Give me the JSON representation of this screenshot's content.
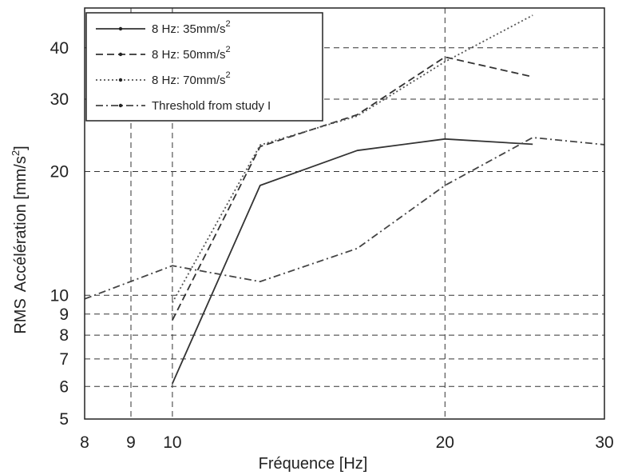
{
  "chart_data": {
    "type": "line",
    "xlabel": "Fréquence [Hz]",
    "ylabel_rms": "RMS",
    "ylabel_main": "Accélération [mm/s",
    "ylabel_sup": "2",
    "ylabel_end": "]",
    "xscale": "log",
    "yscale": "log",
    "xlim": [
      8,
      30
    ],
    "ylim": [
      5,
      50
    ],
    "xticks": [
      8,
      9,
      10,
      20,
      30
    ],
    "xtick_labels": [
      "8",
      "9",
      "10",
      "20",
      "30"
    ],
    "yticks": [
      5,
      6,
      7,
      8,
      9,
      10,
      20,
      30,
      40
    ],
    "ytick_labels": [
      "5",
      "6",
      "7",
      "8",
      "9",
      "10",
      "20",
      "30",
      "40"
    ],
    "grid": true,
    "legend_position": "top-left",
    "series": [
      {
        "name": "8 Hz: 35mm/s",
        "name_sup": "2",
        "dash": "solid",
        "color": "#333333",
        "x": [
          10,
          12.5,
          16,
          20,
          25
        ],
        "y": [
          6.1,
          18.5,
          22.5,
          24,
          23.3
        ]
      },
      {
        "name": "8 Hz: 50mm/s",
        "name_sup": "2",
        "dash": "dashed",
        "color": "#333333",
        "x": [
          10,
          12.5,
          16,
          20,
          25
        ],
        "y": [
          8.7,
          23,
          27.5,
          38,
          34
        ]
      },
      {
        "name": "8 Hz: 70mm/s",
        "name_sup": "2",
        "dash": "dotted",
        "color": "#555555",
        "x": [
          10,
          12.5,
          16,
          20,
          25
        ],
        "y": [
          9.6,
          23.2,
          27.3,
          37,
          48
        ]
      },
      {
        "name": "Threshold from study I",
        "name_sup": "",
        "dash": "dashdot",
        "color": "#444444",
        "x": [
          8,
          10,
          12.5,
          16,
          20,
          25,
          31.5
        ],
        "y": [
          9.8,
          11.8,
          10.8,
          13,
          18.5,
          24.2,
          23
        ]
      }
    ]
  }
}
